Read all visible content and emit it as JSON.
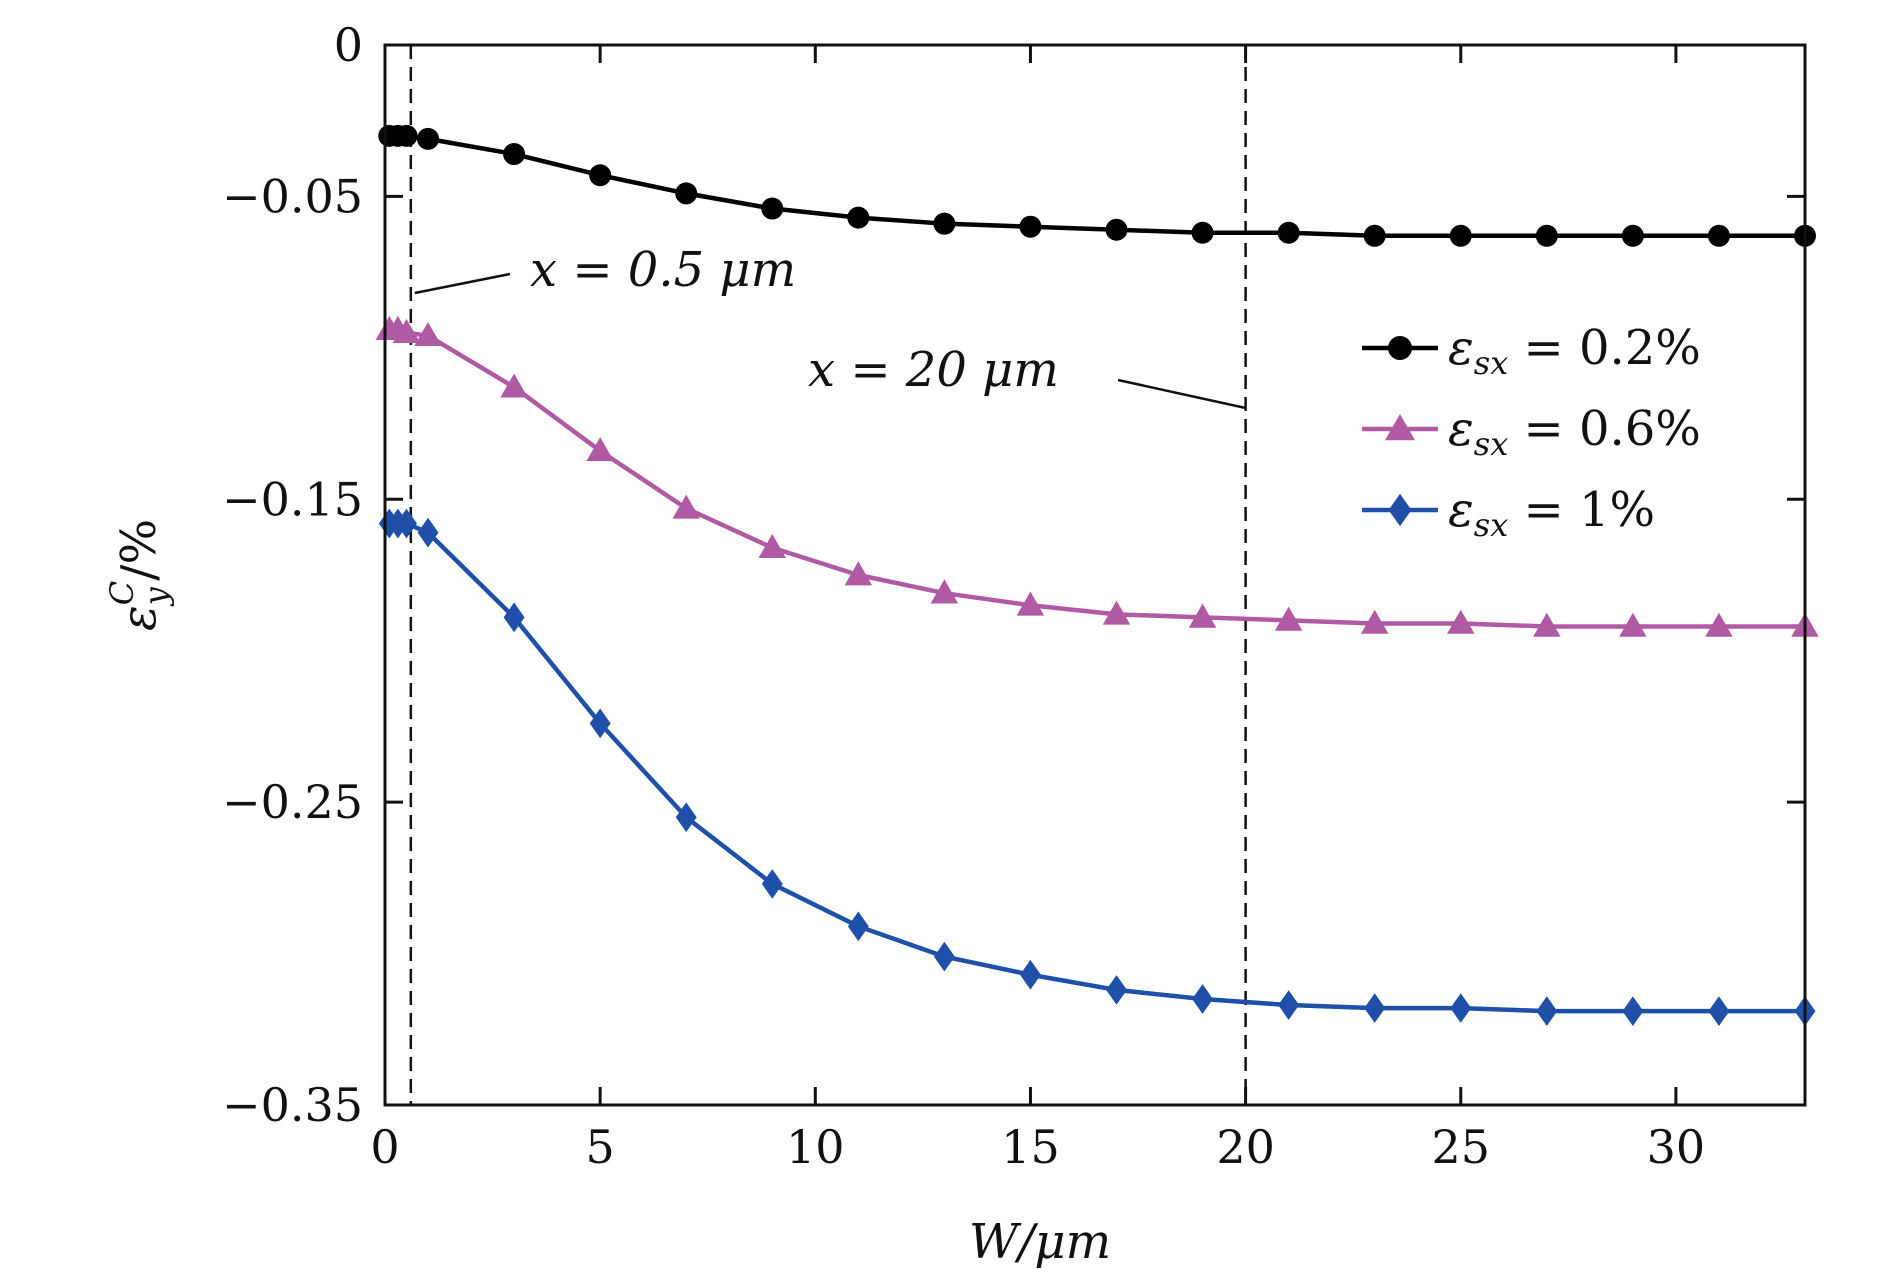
{
  "chart_data": {
    "type": "line",
    "xlabel": "W/μm",
    "ylabel": "ε_y^C/%",
    "xlim": [
      0,
      33
    ],
    "ylim": [
      -0.35,
      0
    ],
    "xticks": [
      0,
      5,
      10,
      15,
      20,
      25,
      30
    ],
    "xtick_labels": [
      "0",
      "5",
      "10",
      "15",
      "20",
      "25",
      "30"
    ],
    "yticks": [
      0,
      -0.05,
      -0.15,
      -0.25,
      -0.35
    ],
    "ytick_labels": [
      "0",
      "−0.05",
      "−0.15",
      "−0.25",
      "−0.35"
    ],
    "grid": false,
    "legend_position": "right",
    "x": [
      0.1,
      0.3,
      0.5,
      1,
      3,
      5,
      7,
      9,
      11,
      13,
      15,
      17,
      19,
      21,
      23,
      25,
      27,
      29,
      31,
      33
    ],
    "series": [
      {
        "name": "ε_sx = 0.2%",
        "label_main": "ε",
        "label_sub": "sx",
        "label_rest": " = 0.2%",
        "color": "#000000",
        "marker": "circle",
        "values": [
          -0.03,
          -0.03,
          -0.03,
          -0.031,
          -0.036,
          -0.043,
          -0.049,
          -0.054,
          -0.057,
          -0.059,
          -0.06,
          -0.061,
          -0.062,
          -0.062,
          -0.063,
          -0.063,
          -0.063,
          -0.063,
          -0.063,
          -0.063
        ]
      },
      {
        "name": "ε_sx = 0.6%",
        "label_main": "ε",
        "label_sub": "sx",
        "label_rest": " = 0.6%",
        "color": "#b05aa3",
        "marker": "triangle",
        "values": [
          -0.094,
          -0.094,
          -0.095,
          -0.096,
          -0.113,
          -0.134,
          -0.153,
          -0.166,
          -0.175,
          -0.181,
          -0.185,
          -0.188,
          -0.189,
          -0.19,
          -0.191,
          -0.191,
          -0.192,
          -0.192,
          -0.192,
          -0.192
        ]
      },
      {
        "name": "ε_sx = 1%",
        "label_main": "ε",
        "label_sub": "sx",
        "label_rest": " = 1%",
        "color": "#1f4fa8",
        "marker": "diamond",
        "values": [
          -0.158,
          -0.158,
          -0.158,
          -0.161,
          -0.189,
          -0.224,
          -0.255,
          -0.277,
          -0.291,
          -0.301,
          -0.307,
          -0.312,
          -0.315,
          -0.317,
          -0.318,
          -0.318,
          -0.319,
          -0.319,
          -0.319,
          -0.319
        ]
      }
    ],
    "vlines": [
      0.6,
      20
    ],
    "annotations": [
      {
        "text": "x = 0.5 μm",
        "points_to_x": 0.6
      },
      {
        "text": "x = 20 μm",
        "points_to_x": 20
      }
    ]
  }
}
